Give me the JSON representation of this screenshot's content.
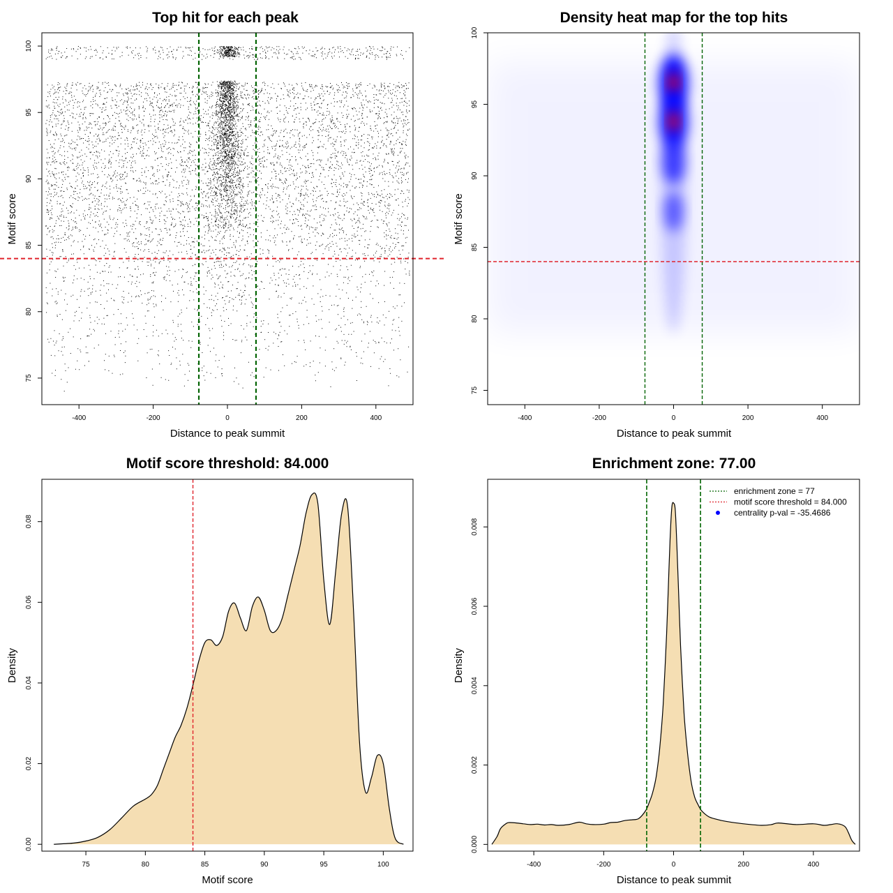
{
  "chart_data": [
    {
      "type": "scatter",
      "title": "Top hit for each peak",
      "xlabel": "Distance to peak summit",
      "ylabel": "Motif score",
      "xlim": [
        -500,
        500
      ],
      "ylim": [
        73,
        101
      ],
      "xticks": [
        -400,
        -200,
        0,
        200,
        400
      ],
      "yticks": [
        75,
        80,
        85,
        90,
        95,
        100
      ],
      "hline": {
        "y": 84,
        "color": "#e0232b",
        "style": "dashed"
      },
      "vlines": [
        {
          "x": -77,
          "color": "#006400",
          "style": "dashed"
        },
        {
          "x": 77,
          "color": "#006400",
          "style": "dashed"
        }
      ],
      "points_description": "dense cloud of points across x from -490 to 490 and y from 74 to 100, concentrated near x = 0",
      "point_color": "#000000"
    },
    {
      "type": "heatmap",
      "title": "Density heat map for the top hits",
      "xlabel": "Distance to peak summit",
      "ylabel": "Motif score",
      "xlim": [
        -500,
        500
      ],
      "ylim": [
        74,
        100
      ],
      "xticks": [
        -400,
        -200,
        0,
        200,
        400
      ],
      "yticks": [
        75,
        80,
        85,
        90,
        95,
        100
      ],
      "hline": {
        "y": 84,
        "color": "#e0232b",
        "style": "dashed"
      },
      "vlines": [
        {
          "x": -77,
          "color": "#006400",
          "style": "dashed"
        },
        {
          "x": 77,
          "color": "#006400",
          "style": "dashed"
        }
      ],
      "colors": [
        "#ffffff",
        "#0000ff",
        "#ff0000"
      ],
      "hotspots": [
        {
          "x": 0,
          "y": 96.5,
          "intensity": 1.0
        },
        {
          "x": 0,
          "y": 93.8,
          "intensity": 0.95
        },
        {
          "x": 0,
          "y": 91.0,
          "intensity": 0.6
        },
        {
          "x": 0,
          "y": 87.5,
          "intensity": 0.35
        }
      ]
    },
    {
      "type": "area",
      "title": "Motif score threshold: 84.000",
      "xlabel": "Motif score",
      "ylabel": "Density",
      "xlim": [
        71.3,
        102.5
      ],
      "ylim": [
        -0.0017,
        0.0905
      ],
      "xticks": [
        75,
        80,
        85,
        90,
        95,
        100
      ],
      "yticks": [
        0.0,
        0.02,
        0.04,
        0.06,
        0.08
      ],
      "ytick_labels": [
        "0.00",
        "0.02",
        "0.04",
        "0.06",
        "0.08"
      ],
      "fill_color": "#f5deb3",
      "vline": {
        "x": 84,
        "color": "#e0232b",
        "style": "dashed"
      },
      "x": [
        72.3,
        74,
        75,
        76,
        77,
        78,
        79,
        80,
        80.5,
        81,
        81.5,
        82,
        82.5,
        83,
        83.5,
        84,
        84.5,
        85,
        85.5,
        86,
        86.5,
        87,
        87.5,
        88,
        88.5,
        89,
        89.5,
        90,
        90.5,
        91,
        91.5,
        92,
        92.5,
        93,
        93.5,
        94,
        94.5,
        95,
        95.5,
        96,
        96.5,
        97,
        97.5,
        98,
        98.5,
        99,
        99.5,
        100,
        100.5,
        101,
        101.7
      ],
      "values": [
        0.0,
        0.0003,
        0.0008,
        0.0017,
        0.0036,
        0.0065,
        0.0095,
        0.0112,
        0.0123,
        0.0145,
        0.0185,
        0.0225,
        0.0265,
        0.0295,
        0.0338,
        0.0395,
        0.0455,
        0.05,
        0.0507,
        0.0493,
        0.0515,
        0.0578,
        0.0598,
        0.056,
        0.053,
        0.059,
        0.0613,
        0.058,
        0.053,
        0.053,
        0.056,
        0.062,
        0.068,
        0.074,
        0.082,
        0.0867,
        0.0845,
        0.0655,
        0.0545,
        0.0678,
        0.082,
        0.0838,
        0.058,
        0.0255,
        0.013,
        0.0165,
        0.022,
        0.02,
        0.009,
        0.0015,
        0.0
      ]
    },
    {
      "type": "area",
      "title": "Enrichment zone: 77.00",
      "xlabel": "Distance to peak summit",
      "ylabel": "Density",
      "xlim": [
        -532,
        532
      ],
      "ylim": [
        -0.00017,
        0.0092
      ],
      "xticks": [
        -400,
        -200,
        0,
        200,
        400
      ],
      "yticks": [
        0.0,
        0.002,
        0.004,
        0.006,
        0.008
      ],
      "ytick_labels": [
        "0.000",
        "0.002",
        "0.004",
        "0.006",
        "0.008"
      ],
      "fill_color": "#f5deb3",
      "vlines": [
        {
          "x": -77,
          "color": "#006400",
          "style": "dashed"
        },
        {
          "x": 77,
          "color": "#006400",
          "style": "dashed"
        }
      ],
      "legend": [
        {
          "label": "enrichment zone = 77",
          "color": "#006400",
          "style": "dotted"
        },
        {
          "label": "motif score threshold = 84.000",
          "color": "#e0232b",
          "style": "dotted"
        },
        {
          "label": "centrality p-val = -35.4686",
          "color": "#0000ff",
          "style": "point"
        }
      ],
      "legend_position": "top-right",
      "x": [
        -520,
        -505,
        -495,
        -480,
        -470,
        -450,
        -430,
        -410,
        -390,
        -370,
        -350,
        -330,
        -300,
        -270,
        -250,
        -230,
        -200,
        -180,
        -160,
        -140,
        -120,
        -100,
        -80,
        -70,
        -60,
        -50,
        -40,
        -30,
        -20,
        -15,
        -10,
        -5,
        0,
        5,
        10,
        15,
        20,
        30,
        40,
        50,
        60,
        70,
        80,
        100,
        120,
        150,
        200,
        250,
        280,
        300,
        350,
        400,
        430,
        450,
        470,
        490,
        500,
        510,
        520
      ],
      "values": [
        0.0,
        0.0002,
        0.0004,
        0.00052,
        0.00055,
        0.00054,
        0.00052,
        0.0005,
        0.00051,
        0.00049,
        0.0005,
        0.00048,
        0.0005,
        0.00056,
        0.00052,
        0.0005,
        0.00051,
        0.00055,
        0.00056,
        0.0006,
        0.00062,
        0.00065,
        0.00085,
        0.00105,
        0.0013,
        0.0017,
        0.0024,
        0.0035,
        0.0053,
        0.0065,
        0.0077,
        0.0085,
        0.0086,
        0.0084,
        0.0074,
        0.0062,
        0.005,
        0.0033,
        0.0023,
        0.0016,
        0.0012,
        0.001,
        0.00085,
        0.0007,
        0.00064,
        0.00058,
        0.00052,
        0.00048,
        0.0005,
        0.00054,
        0.0005,
        0.00052,
        0.00048,
        0.0005,
        0.00052,
        0.00045,
        0.0003,
        0.0001,
        0.0
      ]
    }
  ]
}
